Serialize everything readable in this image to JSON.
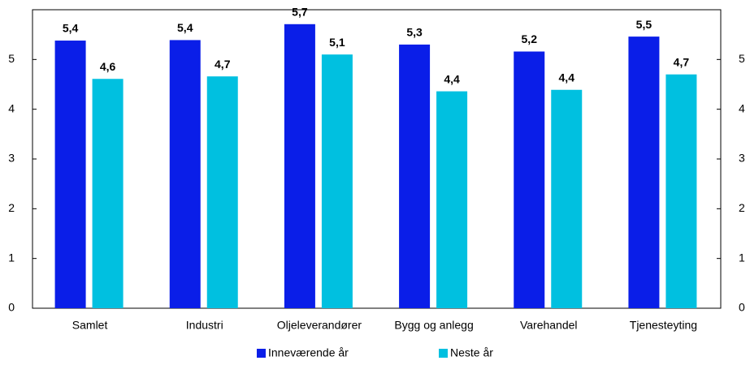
{
  "chart_data": {
    "type": "bar",
    "categories": [
      "Samlet",
      "Industri",
      "Oljeleverandører",
      "Bygg og anlegg",
      "Varehandel",
      "Tjenesteyting"
    ],
    "series": [
      {
        "name": "Inneværende år",
        "color": "#0a1ee8",
        "values": [
          5.38,
          5.39,
          5.71,
          5.3,
          5.16,
          5.46
        ],
        "value_labels": [
          "5,4",
          "5,4",
          "5,7",
          "5,3",
          "5,2",
          "5,5"
        ]
      },
      {
        "name": "Neste år",
        "color": "#00c0e0",
        "values": [
          4.61,
          4.66,
          5.1,
          4.36,
          4.39,
          4.7
        ],
        "value_labels": [
          "4,6",
          "4,7",
          "5,1",
          "4,4",
          "4,4",
          "4,7"
        ]
      }
    ],
    "ylim": [
      0,
      6
    ],
    "yticks": [
      0,
      1,
      2,
      3,
      4,
      5
    ],
    "y2lim": [
      0,
      6
    ],
    "y2ticks": [
      0,
      1,
      2,
      3,
      4,
      5
    ],
    "grid": false
  }
}
